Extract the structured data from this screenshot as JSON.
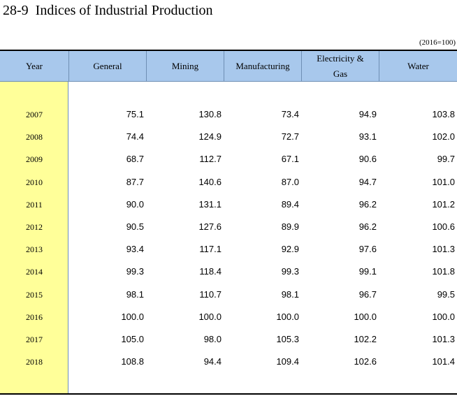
{
  "title": "28-9  Indices of Industrial Production",
  "unit": "(2016=100)",
  "headers": {
    "year": "Year",
    "general": "General",
    "mining": "Mining",
    "manufacturing": "Manufacturing",
    "electricity_line1": "Electricity &",
    "electricity_line2": "Gas",
    "water": "Water"
  },
  "rows": [
    {
      "year": "2007",
      "general": "75.1",
      "mining": "130.8",
      "manufacturing": "73.4",
      "electricity": "94.9",
      "water": "103.8"
    },
    {
      "year": "2008",
      "general": "74.4",
      "mining": "124.9",
      "manufacturing": "72.7",
      "electricity": "93.1",
      "water": "102.0"
    },
    {
      "year": "2009",
      "general": "68.7",
      "mining": "112.7",
      "manufacturing": "67.1",
      "electricity": "90.6",
      "water": "99.7"
    },
    {
      "year": "2010",
      "general": "87.7",
      "mining": "140.6",
      "manufacturing": "87.0",
      "electricity": "94.7",
      "water": "101.0"
    },
    {
      "year": "2011",
      "general": "90.0",
      "mining": "131.1",
      "manufacturing": "89.4",
      "electricity": "96.2",
      "water": "101.2"
    },
    {
      "year": "2012",
      "general": "90.5",
      "mining": "127.6",
      "manufacturing": "89.9",
      "electricity": "96.2",
      "water": "100.6"
    },
    {
      "year": "2013",
      "general": "93.4",
      "mining": "117.1",
      "manufacturing": "92.9",
      "electricity": "97.6",
      "water": "101.3"
    },
    {
      "year": "2014",
      "general": "99.3",
      "mining": "118.4",
      "manufacturing": "99.3",
      "electricity": "99.1",
      "water": "101.8"
    },
    {
      "year": "2015",
      "general": "98.1",
      "mining": "110.7",
      "manufacturing": "98.1",
      "electricity": "96.7",
      "water": "99.5"
    },
    {
      "year": "2016",
      "general": "100.0",
      "mining": "100.0",
      "manufacturing": "100.0",
      "electricity": "100.0",
      "water": "100.0"
    },
    {
      "year": "2017",
      "general": "105.0",
      "mining": "98.0",
      "manufacturing": "105.3",
      "electricity": "102.2",
      "water": "101.3"
    },
    {
      "year": "2018",
      "general": "108.8",
      "mining": "94.4",
      "manufacturing": "109.4",
      "electricity": "102.6",
      "water": "101.4"
    }
  ]
}
